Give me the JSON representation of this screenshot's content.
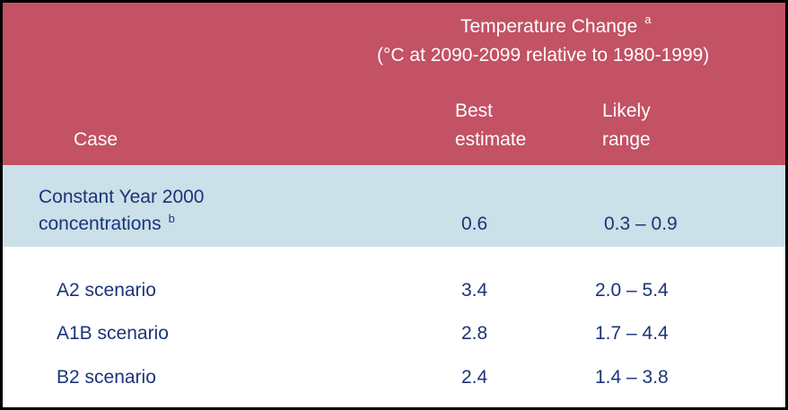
{
  "header": {
    "group_title": "Temperature Change",
    "group_title_note": "a",
    "group_subtitle": "(°C at 2090-2099 relative to 1980-1999)",
    "col_case": "Case",
    "col_best_line1": "Best",
    "col_best_line2": "estimate",
    "col_likely_line1": "Likely",
    "col_likely_line2": "range"
  },
  "colors": {
    "header_bg": "#c25264",
    "highlight_row_bg": "#cbe0e8",
    "body_text": "#1c3479",
    "header_text": "#ffffff",
    "border": "#000000"
  },
  "rows": [
    {
      "case_line1": "Constant Year 2000",
      "case_line2": "concentrations",
      "note": "b",
      "best": "0.6",
      "likely": "0.3 – 0.9"
    },
    {
      "case": "A2 scenario",
      "best": "3.4",
      "likely": "2.0 – 5.4"
    },
    {
      "case": "A1B scenario",
      "best": "2.8",
      "likely": "1.7 – 4.4"
    },
    {
      "case": "B2 scenario",
      "best": "2.4",
      "likely": "1.4 – 3.8"
    }
  ]
}
